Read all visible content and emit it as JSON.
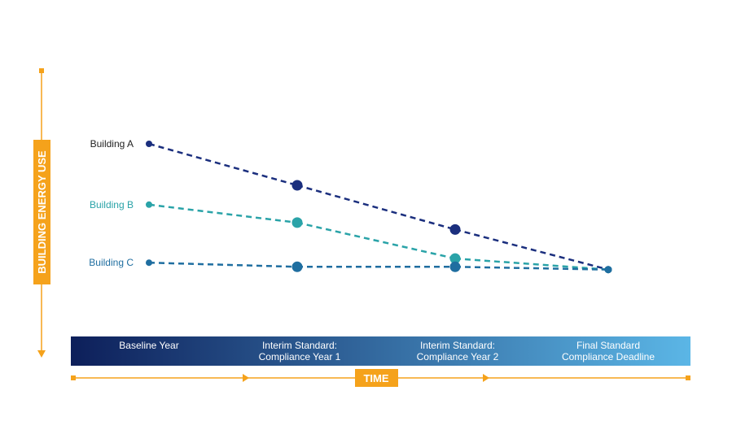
{
  "colors": {
    "accent": "#f5a21b",
    "building_a": "#1b2f7e",
    "building_b": "#2aa3a8",
    "building_c": "#1f6ea0",
    "band_start": "#0d1f5a",
    "band_end": "#5bb6e6",
    "white": "#ffffff"
  },
  "y_axis": {
    "label": "BUILDING ENERGY USE"
  },
  "x_axis": {
    "label": "TIME"
  },
  "timeline": {
    "stages": [
      {
        "line1": "Baseline Year",
        "line2": ""
      },
      {
        "line1": "Interim Standard:",
        "line2": "Compliance Year 1"
      },
      {
        "line1": "Interim Standard:",
        "line2": "Compliance Year 2"
      },
      {
        "line1": "Final Standard",
        "line2": "Compliance Deadline"
      }
    ]
  },
  "chart_data": {
    "type": "line",
    "categories": [
      "Baseline Year",
      "Interim Standard: Compliance Year 1",
      "Interim Standard: Compliance Year 2",
      "Final Standard Compliance Deadline"
    ],
    "series": [
      {
        "name": "Building A",
        "color": "#1b2f7e",
        "values": [
          100,
          70,
          38,
          9
        ]
      },
      {
        "name": "Building B",
        "color": "#2aa3a8",
        "values": [
          56,
          43,
          17,
          9
        ]
      },
      {
        "name": "Building C",
        "color": "#1f6ea0",
        "values": [
          14,
          11,
          11,
          9
        ]
      }
    ],
    "xlabel": "TIME",
    "ylabel": "BUILDING ENERGY USE",
    "ylim": [
      0,
      100
    ],
    "grid": false,
    "line_style": "dashed"
  }
}
